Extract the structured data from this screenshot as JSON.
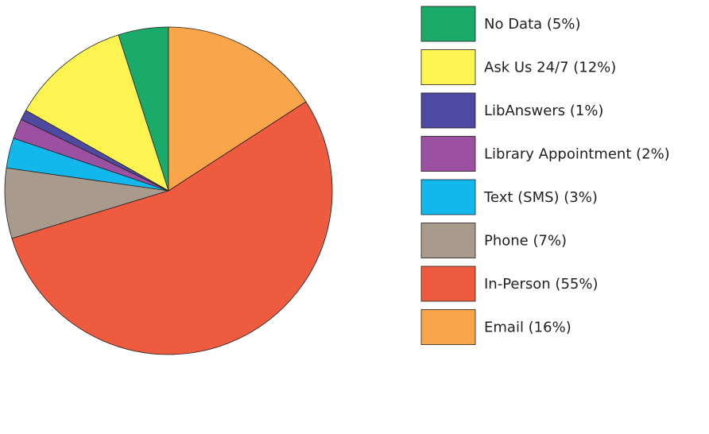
{
  "chart_data": {
    "type": "pie",
    "categories": [
      "No Data (5%)",
      "Ask Us 24/7 (12%)",
      "LibAnswers (1%)",
      "Library Appointment (2%)",
      "Text (SMS) (3%)",
      "Phone (7%)",
      "In-Person (55%)",
      "Email (16%)"
    ],
    "values": [
      5,
      12,
      1,
      2,
      3,
      7,
      55,
      16
    ],
    "colors": [
      "#1aab6a",
      "#fef451",
      "#4f4aa1",
      "#9b50a1",
      "#12b7ec",
      "#a89a8c",
      "#ef5b3f",
      "#f9a54a"
    ],
    "legend": "right"
  }
}
